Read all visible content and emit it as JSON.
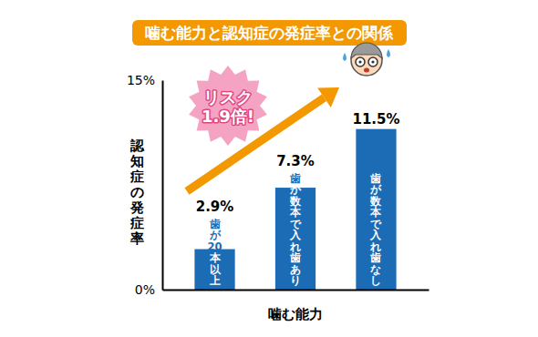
{
  "chart_data": {
    "type": "bar",
    "title": "噛む能力と認知症の発症率との関係",
    "x_label": "噛む能力",
    "y_label": "認知症の発症率",
    "categories": [
      "歯が20本以上",
      "歯が数本で入れ歯あり",
      "歯が数本で入れ歯なし"
    ],
    "values": [
      2.9,
      7.3,
      11.5
    ],
    "value_labels": [
      "2.9%",
      "7.3%",
      "11.5%"
    ],
    "color": "#1b6bb5",
    "ylim": [
      0,
      15
    ],
    "yticks": [
      {
        "value": 0,
        "label": "0%"
      },
      {
        "value": 15,
        "label": "15%"
      }
    ],
    "grid": false,
    "data_labels": true,
    "annotations": [
      [
        "リスク",
        "1.9倍!"
      ]
    ]
  }
}
